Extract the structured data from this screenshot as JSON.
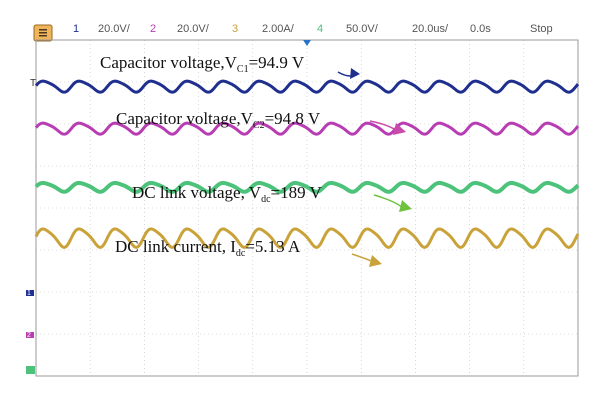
{
  "header": {
    "ch1_num": "1",
    "ch1_scale": "20.0V/",
    "ch2_num": "2",
    "ch2_scale": "20.0V/",
    "ch3_num": "3",
    "ch3_scale": "2.00A/",
    "ch4_num": "4",
    "ch4_scale": "50.0V/",
    "timebase": "20.0us/",
    "offset": "0.0s",
    "status": "Stop"
  },
  "colors": {
    "ch1": "#1f2f8f",
    "ch2": "#b83db3",
    "ch3": "#c9a23a",
    "ch4": "#4cc27a",
    "grid": "#bdbdbd",
    "arrow1": "#1f2f8f",
    "arrow2": "#c94aa8",
    "arrow3": "#6fc23f",
    "arrow4": "#c9a23a"
  },
  "annotations": {
    "vc1": {
      "main": "Capacitor voltage,V",
      "sub": "C1",
      "tail": "=94.9 V"
    },
    "vc2": {
      "main": "Capacitor voltage,V",
      "sub": "C2",
      "tail": "=94.8 V"
    },
    "vdc": {
      "main": "DC link voltage, V",
      "sub": "dc",
      "tail": "=189 V"
    },
    "idc": {
      "main": "DC link current, I",
      "sub": "dc",
      "tail": "=5.13 A"
    }
  },
  "markers": {
    "trigger": "T",
    "ch1": "1",
    "ch2": "2"
  },
  "chart_data": {
    "type": "line",
    "x_unit": "us",
    "x_range": [
      0,
      200
    ],
    "series": [
      {
        "name": "Capacitor voltage,VC1=94.9 V",
        "channel": 1,
        "mean": 94.9,
        "ripple_pp": 1.2,
        "ripple_period_us": 13.3
      },
      {
        "name": "Capacitor voltage,VC2=94.8 V",
        "channel": 2,
        "mean": 94.8,
        "ripple_pp": 1.2,
        "ripple_period_us": 13.3
      },
      {
        "name": "DC link voltage, Vdc=189 V",
        "channel": 4,
        "mean": 189,
        "ripple_pp": 2.4,
        "ripple_period_us": 13.3
      },
      {
        "name": "DC link current, Idc=5.13 A",
        "channel": 3,
        "mean": 5.13,
        "ripple_pp": 0.2,
        "ripple_period_us": 13.3
      }
    ],
    "grid": true
  }
}
